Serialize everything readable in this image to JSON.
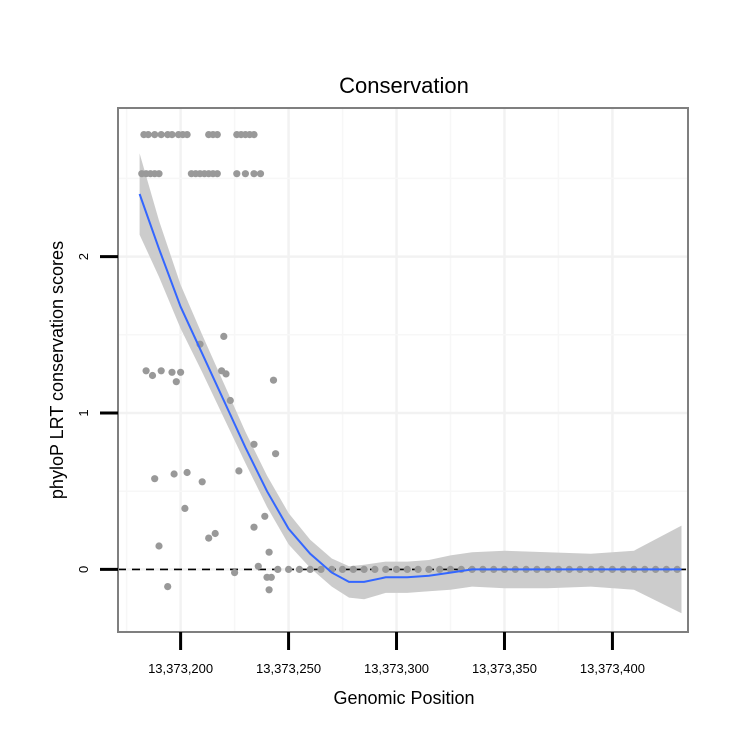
{
  "chart_data": {
    "type": "scatter",
    "title": "Conservation",
    "xlabel": "Genomic Position",
    "ylabel": "phyloP LRT conservation scores",
    "xlim": [
      13373171,
      13373435
    ],
    "ylim": [
      -0.4,
      2.95
    ],
    "x_ticks": [
      {
        "value": 13373200,
        "label": "13,373,200"
      },
      {
        "value": 13373250,
        "label": "13,373,250"
      },
      {
        "value": 13373300,
        "label": "13,373,300"
      },
      {
        "value": 13373350,
        "label": "13,373,350"
      },
      {
        "value": 13373400,
        "label": "13,373,400"
      }
    ],
    "y_ticks": [
      {
        "value": 0,
        "label": "0"
      },
      {
        "value": 1,
        "label": "1"
      },
      {
        "value": 2,
        "label": "2"
      }
    ],
    "reference_line": {
      "y": 0,
      "style": "dashed"
    },
    "colors": {
      "points": "#999999",
      "smooth": "#3366ff",
      "band": "#cccccc",
      "panel_border": "#7f7f7f",
      "grid": "#f2f2f2"
    },
    "points": [
      [
        13373183,
        2.78
      ],
      [
        13373185,
        2.78
      ],
      [
        13373188,
        2.78
      ],
      [
        13373191,
        2.78
      ],
      [
        13373194,
        2.78
      ],
      [
        13373196,
        2.78
      ],
      [
        13373199,
        2.78
      ],
      [
        13373201,
        2.78
      ],
      [
        13373203,
        2.78
      ],
      [
        13373213,
        2.78
      ],
      [
        13373215,
        2.78
      ],
      [
        13373217,
        2.78
      ],
      [
        13373226,
        2.78
      ],
      [
        13373228,
        2.78
      ],
      [
        13373230,
        2.78
      ],
      [
        13373232,
        2.78
      ],
      [
        13373234,
        2.78
      ],
      [
        13373182,
        2.53
      ],
      [
        13373184,
        2.53
      ],
      [
        13373186,
        2.53
      ],
      [
        13373188,
        2.53
      ],
      [
        13373190,
        2.53
      ],
      [
        13373205,
        2.53
      ],
      [
        13373207,
        2.53
      ],
      [
        13373209,
        2.53
      ],
      [
        13373211,
        2.53
      ],
      [
        13373213,
        2.53
      ],
      [
        13373215,
        2.53
      ],
      [
        13373217,
        2.53
      ],
      [
        13373226,
        2.53
      ],
      [
        13373230,
        2.53
      ],
      [
        13373234,
        2.53
      ],
      [
        13373237,
        2.53
      ],
      [
        13373220,
        1.49
      ],
      [
        13373209,
        1.44
      ],
      [
        13373184,
        1.27
      ],
      [
        13373187,
        1.24
      ],
      [
        13373191,
        1.27
      ],
      [
        13373196,
        1.26
      ],
      [
        13373198,
        1.2
      ],
      [
        13373200,
        1.26
      ],
      [
        13373219,
        1.27
      ],
      [
        13373221,
        1.25
      ],
      [
        13373243,
        1.21
      ],
      [
        13373223,
        1.08
      ],
      [
        13373234,
        0.8
      ],
      [
        13373244,
        0.74
      ],
      [
        13373227,
        0.63
      ],
      [
        13373197,
        0.61
      ],
      [
        13373203,
        0.62
      ],
      [
        13373188,
        0.58
      ],
      [
        13373210,
        0.56
      ],
      [
        13373202,
        0.39
      ],
      [
        13373239,
        0.34
      ],
      [
        13373234,
        0.27
      ],
      [
        13373216,
        0.23
      ],
      [
        13373213,
        0.2
      ],
      [
        13373190,
        0.15
      ],
      [
        13373241,
        0.11
      ],
      [
        13373236,
        0.02
      ],
      [
        13373225,
        -0.02
      ],
      [
        13373240,
        -0.05
      ],
      [
        13373242,
        -0.05
      ],
      [
        13373194,
        -0.11
      ],
      [
        13373241,
        -0.13
      ],
      [
        13373245,
        0.0
      ],
      [
        13373250,
        0.0
      ],
      [
        13373255,
        0.0
      ],
      [
        13373260,
        0.0
      ],
      [
        13373265,
        0.0
      ],
      [
        13373270,
        0.0
      ],
      [
        13373275,
        0.0
      ],
      [
        13373280,
        0.0
      ],
      [
        13373285,
        0.0
      ],
      [
        13373290,
        0.0
      ],
      [
        13373295,
        0.0
      ],
      [
        13373300,
        0.0
      ],
      [
        13373305,
        0.0
      ],
      [
        13373310,
        0.0
      ],
      [
        13373315,
        0.0
      ],
      [
        13373320,
        0.0
      ],
      [
        13373325,
        0.0
      ],
      [
        13373330,
        0.0
      ],
      [
        13373335,
        0.0
      ],
      [
        13373340,
        0.0
      ],
      [
        13373345,
        0.0
      ],
      [
        13373350,
        0.0
      ],
      [
        13373355,
        0.0
      ],
      [
        13373360,
        0.0
      ],
      [
        13373365,
        0.0
      ],
      [
        13373370,
        0.0
      ],
      [
        13373375,
        0.0
      ],
      [
        13373380,
        0.0
      ],
      [
        13373385,
        0.0
      ],
      [
        13373390,
        0.0
      ],
      [
        13373395,
        0.0
      ],
      [
        13373400,
        0.0
      ],
      [
        13373405,
        0.0
      ],
      [
        13373410,
        0.0
      ],
      [
        13373415,
        0.0
      ],
      [
        13373420,
        0.0
      ],
      [
        13373425,
        0.0
      ],
      [
        13373430,
        0.0
      ]
    ],
    "smooth_line": [
      [
        13373181,
        2.4
      ],
      [
        13373190,
        2.05
      ],
      [
        13373200,
        1.68
      ],
      [
        13373210,
        1.38
      ],
      [
        13373220,
        1.08
      ],
      [
        13373230,
        0.78
      ],
      [
        13373240,
        0.5
      ],
      [
        13373250,
        0.26
      ],
      [
        13373260,
        0.1
      ],
      [
        13373270,
        -0.02
      ],
      [
        13373278,
        -0.08
      ],
      [
        13373285,
        -0.08
      ],
      [
        13373295,
        -0.05
      ],
      [
        13373305,
        -0.05
      ],
      [
        13373315,
        -0.04
      ],
      [
        13373325,
        -0.02
      ],
      [
        13373335,
        0.0
      ],
      [
        13373350,
        0.0
      ],
      [
        13373370,
        0.0
      ],
      [
        13373390,
        0.0
      ],
      [
        13373410,
        0.0
      ],
      [
        13373432,
        0.0
      ]
    ],
    "confidence_band": {
      "upper": [
        [
          13373181,
          2.66
        ],
        [
          13373190,
          2.23
        ],
        [
          13373200,
          1.82
        ],
        [
          13373210,
          1.5
        ],
        [
          13373220,
          1.19
        ],
        [
          13373230,
          0.88
        ],
        [
          13373240,
          0.6
        ],
        [
          13373250,
          0.36
        ],
        [
          13373260,
          0.19
        ],
        [
          13373270,
          0.07
        ],
        [
          13373278,
          0.02
        ],
        [
          13373285,
          0.03
        ],
        [
          13373295,
          0.05
        ],
        [
          13373305,
          0.05
        ],
        [
          13373315,
          0.06
        ],
        [
          13373325,
          0.09
        ],
        [
          13373335,
          0.11
        ],
        [
          13373350,
          0.12
        ],
        [
          13373370,
          0.11
        ],
        [
          13373390,
          0.1
        ],
        [
          13373410,
          0.12
        ],
        [
          13373432,
          0.28
        ]
      ],
      "lower": [
        [
          13373181,
          2.14
        ],
        [
          13373190,
          1.87
        ],
        [
          13373200,
          1.54
        ],
        [
          13373210,
          1.26
        ],
        [
          13373220,
          0.97
        ],
        [
          13373230,
          0.68
        ],
        [
          13373240,
          0.4
        ],
        [
          13373250,
          0.16
        ],
        [
          13373260,
          0.01
        ],
        [
          13373270,
          -0.11
        ],
        [
          13373278,
          -0.18
        ],
        [
          13373285,
          -0.19
        ],
        [
          13373295,
          -0.15
        ],
        [
          13373305,
          -0.15
        ],
        [
          13373315,
          -0.14
        ],
        [
          13373325,
          -0.13
        ],
        [
          13373335,
          -0.11
        ],
        [
          13373350,
          -0.12
        ],
        [
          13373370,
          -0.12
        ],
        [
          13373390,
          -0.11
        ],
        [
          13373410,
          -0.13
        ],
        [
          13373432,
          -0.28
        ]
      ]
    }
  }
}
